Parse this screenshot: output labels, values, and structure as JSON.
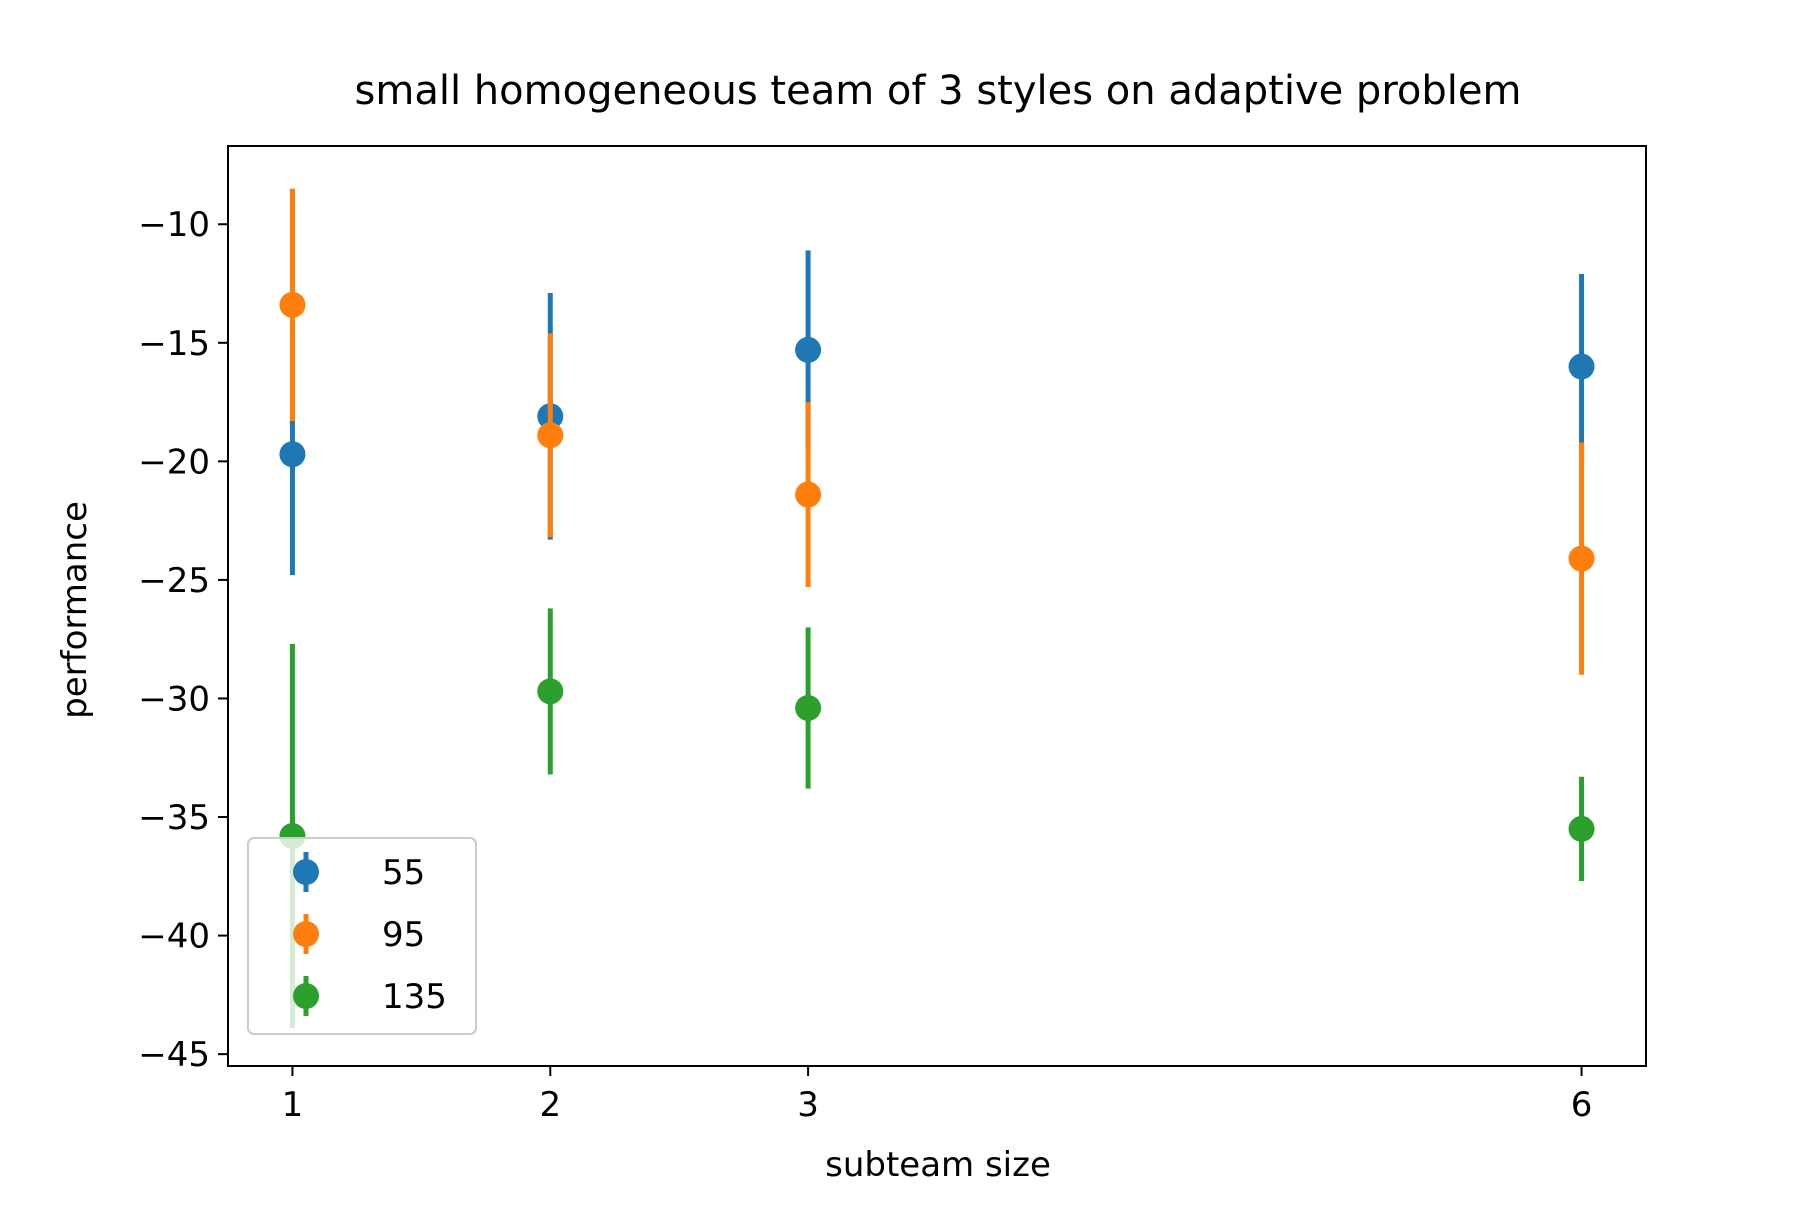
{
  "chart_data": {
    "type": "scatter",
    "title": "small homogeneous team of 3 styles on adaptive problem",
    "xlabel": "subteam size",
    "ylabel": "performance",
    "xlim": [
      0.75,
      6.25
    ],
    "ylim": [
      -45.5,
      -6.7
    ],
    "xticks": [
      1,
      2,
      3,
      6
    ],
    "yticks": [
      -10,
      -15,
      -20,
      -25,
      -30,
      -35,
      -40,
      -45
    ],
    "legend_placement": "lower left",
    "series": [
      {
        "name": "55",
        "color": "#1f77b4",
        "points": [
          {
            "x": 1,
            "y": -19.7,
            "err": 5.1
          },
          {
            "x": 2,
            "y": -18.1,
            "err": 5.2
          },
          {
            "x": 3,
            "y": -15.3,
            "err": 4.2
          },
          {
            "x": 6,
            "y": -16.0,
            "err": 3.9
          }
        ]
      },
      {
        "name": "95",
        "color": "#ff7f0e",
        "points": [
          {
            "x": 1,
            "y": -13.4,
            "err": 4.9
          },
          {
            "x": 2,
            "y": -18.9,
            "err": 4.3
          },
          {
            "x": 3,
            "y": -21.4,
            "err": 3.9
          },
          {
            "x": 6,
            "y": -24.1,
            "err": 4.9
          }
        ]
      },
      {
        "name": "135",
        "color": "#2ca02c",
        "points": [
          {
            "x": 1,
            "y": -35.8,
            "err": 8.1
          },
          {
            "x": 2,
            "y": -29.7,
            "err": 3.5
          },
          {
            "x": 3,
            "y": -30.4,
            "err": 3.4
          },
          {
            "x": 6,
            "y": -35.5,
            "err": 2.2
          }
        ]
      }
    ]
  }
}
